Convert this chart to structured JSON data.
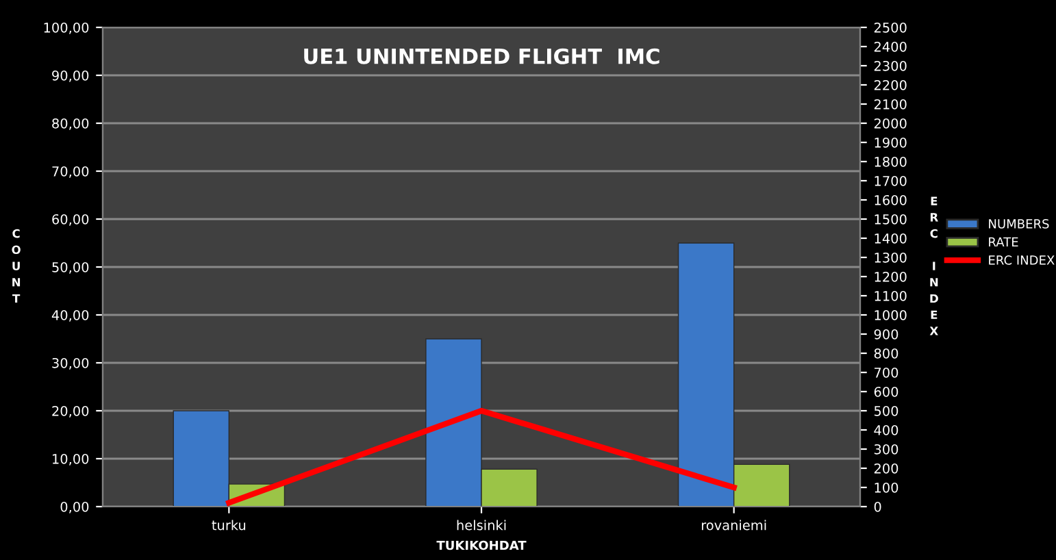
{
  "chart_data": {
    "type": "bar",
    "title": "UE1 UNINTENDED FLIGHT  IMC",
    "xlabel": "TUKIKOHDAT",
    "ylabel": "COUNT",
    "y2label": "ERC INDEX",
    "categories": [
      "turku",
      "helsinki",
      "rovaniemi"
    ],
    "series": [
      {
        "name": "NUMBERS",
        "color": "#3b78c8",
        "values": [
          20,
          35,
          55
        ]
      },
      {
        "name": "RATE",
        "color": "#9bc447",
        "values": [
          4.7,
          7.8,
          8.8
        ]
      },
      {
        "name": "ERC INDEX",
        "color": "#ff0000",
        "type": "line",
        "axis": "y2",
        "values": [
          20,
          500,
          100
        ]
      }
    ],
    "ylim": [
      0,
      100
    ],
    "yticks": [
      {
        "value": 0,
        "label": "0,00"
      },
      {
        "value": 10,
        "label": "10,00"
      },
      {
        "value": 20,
        "label": "20,00"
      },
      {
        "value": 30,
        "label": "30,00"
      },
      {
        "value": 40,
        "label": "40,00"
      },
      {
        "value": 50,
        "label": "50,00"
      },
      {
        "value": 60,
        "label": "60,00"
      },
      {
        "value": 70,
        "label": "70,00"
      },
      {
        "value": 80,
        "label": "80,00"
      },
      {
        "value": 90,
        "label": "90,00"
      },
      {
        "value": 100,
        "label": "100,00"
      }
    ],
    "y2lim": [
      0,
      2500
    ],
    "y2ticks": [
      0,
      100,
      200,
      300,
      400,
      500,
      600,
      700,
      800,
      900,
      1000,
      1100,
      1200,
      1300,
      1400,
      1500,
      1600,
      1700,
      1800,
      1900,
      2000,
      2100,
      2200,
      2300,
      2400,
      2500
    ],
    "grid": "y",
    "legend": "right",
    "marker": "none",
    "line_style": "solid"
  }
}
